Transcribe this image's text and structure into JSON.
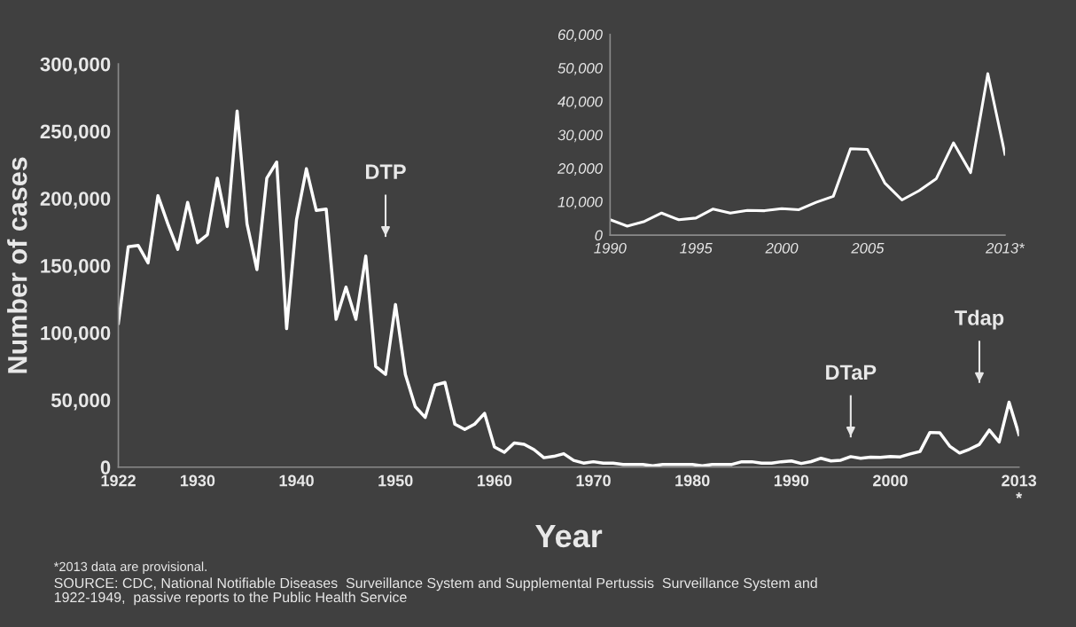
{
  "chart_data": [
    {
      "type": "line",
      "xlabel": "Year",
      "ylabel": "Number of cases",
      "x": [
        1922,
        1923,
        1924,
        1925,
        1926,
        1927,
        1928,
        1929,
        1930,
        1931,
        1932,
        1933,
        1934,
        1935,
        1936,
        1937,
        1938,
        1939,
        1940,
        1941,
        1942,
        1943,
        1944,
        1945,
        1946,
        1947,
        1948,
        1949,
        1950,
        1951,
        1952,
        1953,
        1954,
        1955,
        1956,
        1957,
        1958,
        1959,
        1960,
        1961,
        1962,
        1963,
        1964,
        1965,
        1966,
        1967,
        1968,
        1969,
        1970,
        1971,
        1972,
        1973,
        1974,
        1975,
        1976,
        1977,
        1978,
        1979,
        1980,
        1981,
        1982,
        1983,
        1984,
        1985,
        1986,
        1987,
        1988,
        1989,
        1990,
        1991,
        1992,
        1993,
        1994,
        1995,
        1996,
        1997,
        1998,
        1999,
        2000,
        2001,
        2002,
        2003,
        2004,
        2005,
        2006,
        2007,
        2008,
        2009,
        2010,
        2011,
        2012,
        2013
      ],
      "series": [
        {
          "color": "#ffffff",
          "values": [
            107000,
            164000,
            165000,
            152000,
            202000,
            181000,
            162000,
            197000,
            167000,
            173000,
            215000,
            179000,
            265000,
            181000,
            147000,
            215000,
            227000,
            103000,
            184000,
            222000,
            191000,
            192000,
            110000,
            134000,
            110000,
            157000,
            75000,
            69000,
            121000,
            69000,
            45000,
            37000,
            61000,
            63000,
            32000,
            28000,
            32000,
            40000,
            15000,
            11000,
            18000,
            17000,
            13000,
            7000,
            8000,
            10000,
            5000,
            3000,
            4000,
            3000,
            3000,
            2000,
            2000,
            2000,
            1000,
            2000,
            2000,
            2000,
            2000,
            1000,
            2000,
            2000,
            2000,
            4000,
            4000,
            3000,
            3000,
            4000,
            4600,
            2700,
            4100,
            6600,
            4600,
            5100,
            7800,
            6600,
            7400,
            7300,
            7900,
            7600,
            9800,
            11600,
            25800,
            25600,
            15600,
            10500,
            13300,
            16900,
            27600,
            18700,
            48300,
            24200
          ]
        }
      ],
      "xlim": [
        1922,
        2013
      ],
      "ylim": [
        0,
        300000
      ],
      "xticks": [
        1922,
        1930,
        1940,
        1950,
        1960,
        1970,
        1980,
        1990,
        2000,
        {
          "value": 2013,
          "label": "2013\n*"
        }
      ],
      "yticks": [
        {
          "value": 0,
          "label": "0"
        },
        {
          "value": 50000,
          "label": "50,000"
        },
        {
          "value": 100000,
          "label": "100,000"
        },
        {
          "value": 150000,
          "label": "150,000"
        },
        {
          "value": 200000,
          "label": "200,000"
        },
        {
          "value": 250000,
          "label": "250,000"
        },
        {
          "value": 300000,
          "label": "300,000"
        }
      ],
      "grid": false,
      "legend": false,
      "ref_lines": [
        {
          "axis": "x",
          "value": 1949,
          "label": "DTP"
        },
        {
          "axis": "x",
          "value": 1996,
          "label": "DTaP"
        },
        {
          "axis": "x",
          "value": 2009,
          "label": "Tdap"
        }
      ],
      "annotations": [
        "*2013 data are provisional.",
        "SOURCE: CDC, National Notifiable Diseases  Surveillance System and Supplemental Pertussis  Surveillance System and\n1922-1949,  passive reports to the Public Health Service"
      ]
    },
    {
      "type": "line",
      "x": [
        1990,
        1991,
        1992,
        1993,
        1994,
        1995,
        1996,
        1997,
        1998,
        1999,
        2000,
        2001,
        2002,
        2003,
        2004,
        2005,
        2006,
        2007,
        2008,
        2009,
        2010,
        2011,
        2012,
        2013
      ],
      "series": [
        {
          "color": "#ffffff",
          "values": [
            4600,
            2700,
            4100,
            6600,
            4600,
            5100,
            7800,
            6600,
            7400,
            7300,
            7900,
            7600,
            9800,
            11600,
            25800,
            25600,
            15600,
            10500,
            13300,
            16900,
            27600,
            18700,
            48300,
            24200
          ]
        }
      ],
      "xlim": [
        1990,
        2013
      ],
      "ylim": [
        0,
        60000
      ],
      "xticks": [
        1990,
        1995,
        2000,
        2005,
        {
          "value": 2013,
          "label": "2013*"
        }
      ],
      "yticks": [
        {
          "value": 0,
          "label": "0"
        },
        {
          "value": 10000,
          "label": "10,000"
        },
        {
          "value": 20000,
          "label": "20,000"
        },
        {
          "value": 30000,
          "label": "30,000"
        },
        {
          "value": 40000,
          "label": "40,000"
        },
        {
          "value": 50000,
          "label": "50,000"
        },
        {
          "value": 60000,
          "label": "60,000"
        }
      ],
      "grid": false,
      "legend": false
    }
  ]
}
